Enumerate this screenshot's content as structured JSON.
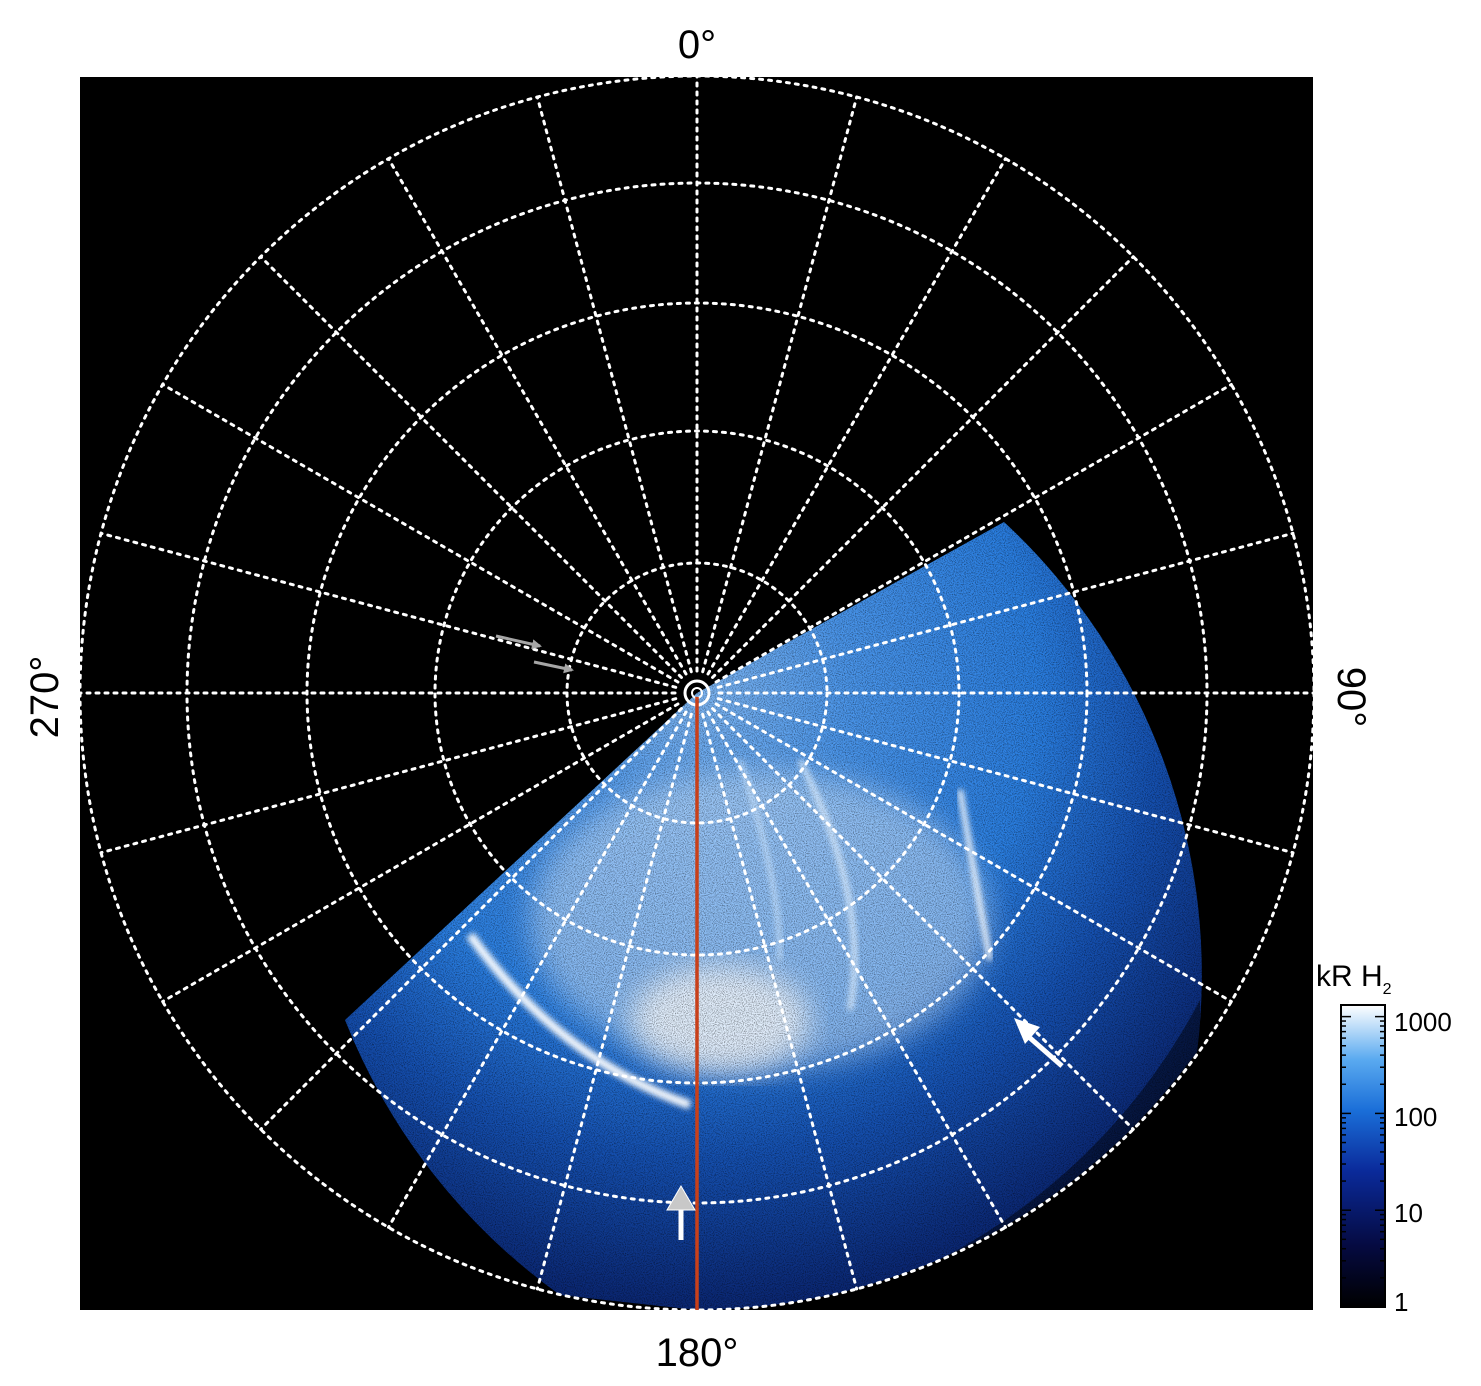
{
  "labels": {
    "top": "0°",
    "bottom": "180°",
    "left": "270°",
    "right": "90°"
  },
  "colorbar": {
    "title": "kR H",
    "title_subscript": "2",
    "ticks": [
      "1000",
      "100",
      "10",
      "1"
    ]
  },
  "colors": {
    "background": "#000000",
    "grid": "#ffffff",
    "meridian_line": "#c8401a",
    "emission_dark": "#0a2a8a",
    "emission_mid": "#1a6ed8",
    "emission_bright": "#ffffff",
    "arrow_gray": "#a6a6a6",
    "arrow_white": "#ffffff"
  }
}
